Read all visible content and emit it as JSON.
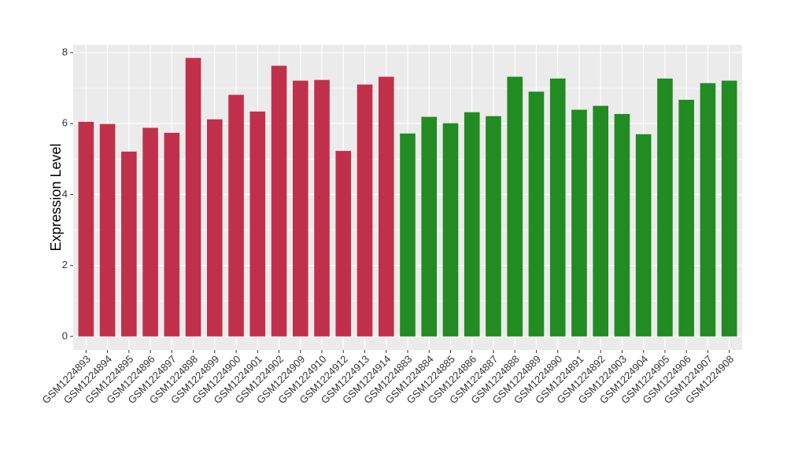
{
  "chart_data": {
    "type": "bar",
    "y_label": "Expression Level",
    "categories": [
      "GSM1224893",
      "GSM1224894",
      "GSM1224895",
      "GSM1224896",
      "GSM1224897",
      "GSM1224898",
      "GSM1224899",
      "GSM1224900",
      "GSM1224901",
      "GSM1224902",
      "GSM1224909",
      "GSM1224910",
      "GSM1224912",
      "GSM1224913",
      "GSM1224914",
      "GSM1224883",
      "GSM1224884",
      "GSM1224885",
      "GSM1224886",
      "GSM1224887",
      "GSM1224888",
      "GSM1224889",
      "GSM1224890",
      "GSM1224891",
      "GSM1224892",
      "GSM1224903",
      "GSM1224904",
      "GSM1224905",
      "GSM1224906",
      "GSM1224907",
      "GSM1224908"
    ],
    "values": [
      6.05,
      5.99,
      5.21,
      5.88,
      5.74,
      7.85,
      6.12,
      6.81,
      6.34,
      7.63,
      7.21,
      7.23,
      5.23,
      7.1,
      7.32,
      5.72,
      6.19,
      6.01,
      6.32,
      6.21,
      7.32,
      6.9,
      7.27,
      6.39,
      6.5,
      6.27,
      5.7,
      7.27,
      6.67,
      7.14,
      7.21
    ],
    "colors": [
      "#c1304a",
      "#c1304a",
      "#c1304a",
      "#c1304a",
      "#c1304a",
      "#c1304a",
      "#c1304a",
      "#c1304a",
      "#c1304a",
      "#c1304a",
      "#c1304a",
      "#c1304a",
      "#c1304a",
      "#c1304a",
      "#c1304a",
      "#228b22",
      "#228b22",
      "#228b22",
      "#228b22",
      "#228b22",
      "#228b22",
      "#228b22",
      "#228b22",
      "#228b22",
      "#228b22",
      "#228b22",
      "#228b22",
      "#228b22",
      "#228b22",
      "#228b22",
      "#228b22"
    ],
    "ylim": [
      -0.38,
      8.22
    ],
    "yticks": [
      0,
      2,
      4,
      6,
      8
    ],
    "y_minor_ticks": [
      1,
      3,
      5,
      7
    ],
    "grid": true
  }
}
